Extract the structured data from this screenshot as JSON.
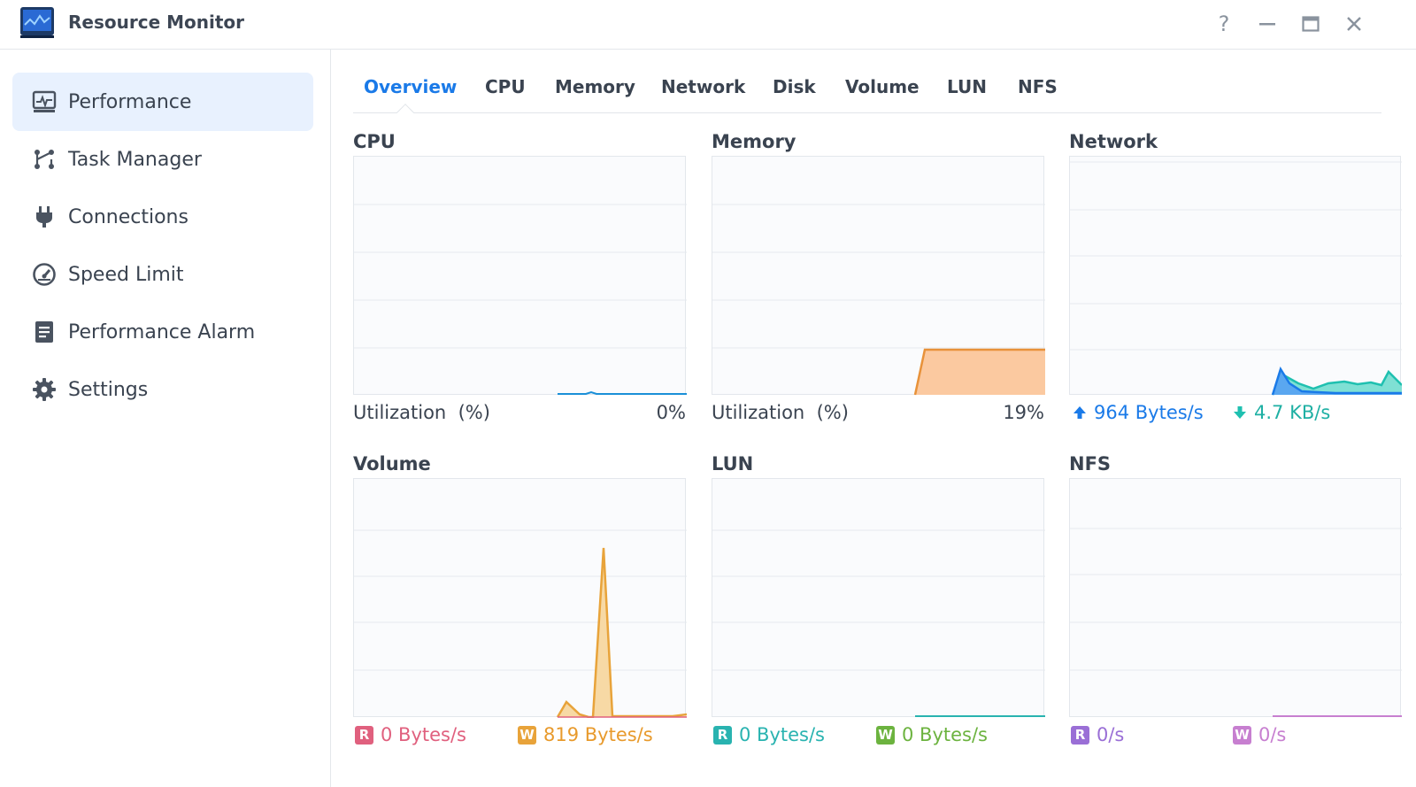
{
  "window": {
    "title": "Resource Monitor",
    "controls": [
      "?",
      "—",
      "□",
      "✕"
    ]
  },
  "sidebar": {
    "items": [
      {
        "label": "Performance",
        "icon": "performance-icon",
        "active": true
      },
      {
        "label": "Task Manager",
        "icon": "task-manager-icon",
        "active": false
      },
      {
        "label": "Connections",
        "icon": "plug-icon",
        "active": false
      },
      {
        "label": "Speed Limit",
        "icon": "speedometer-icon",
        "active": false
      },
      {
        "label": "Performance Alarm",
        "icon": "clipboard-icon",
        "active": false
      },
      {
        "label": "Settings",
        "icon": "gear-icon",
        "active": false
      }
    ]
  },
  "tabs": [
    {
      "label": "Overview",
      "active": true
    },
    {
      "label": "CPU"
    },
    {
      "label": "Memory"
    },
    {
      "label": "Network"
    },
    {
      "label": "Disk"
    },
    {
      "label": "Volume"
    },
    {
      "label": "LUN"
    },
    {
      "label": "NFS"
    }
  ],
  "panels": {
    "cpu": {
      "title": "CPU",
      "label": "Utilization  (%)",
      "value": "0%"
    },
    "memory": {
      "title": "Memory",
      "label": "Utilization  (%)",
      "value": "19%"
    },
    "network": {
      "title": "Network",
      "upload": "964 Bytes/s",
      "download": "4.7 KB/s"
    },
    "volume": {
      "title": "Volume",
      "read_badge": "R",
      "read": "0 Bytes/s",
      "write_badge": "W",
      "write": "819 Bytes/s"
    },
    "lun": {
      "title": "LUN",
      "read_badge": "R",
      "read": "0 Bytes/s",
      "write_badge": "W",
      "write": "0 Bytes/s"
    },
    "nfs": {
      "title": "NFS",
      "read_badge": "R",
      "read": "0/s",
      "write_badge": "W",
      "write": "0/s"
    }
  },
  "colors": {
    "accent": "#1a7ae8",
    "cpu": "#1a8fd8",
    "memory_line": "#e8923a",
    "memory_fill": "#fbc9a0",
    "net_up": "#1a7ae8",
    "net_down": "#1fc0b0",
    "vol_read": "#e0607e",
    "vol_write": "#e8a33a",
    "lun_read": "#29b3b0",
    "lun_write": "#6cb33f",
    "nfs_read": "#9a6fd6",
    "nfs_write": "#c77fd0"
  }
}
